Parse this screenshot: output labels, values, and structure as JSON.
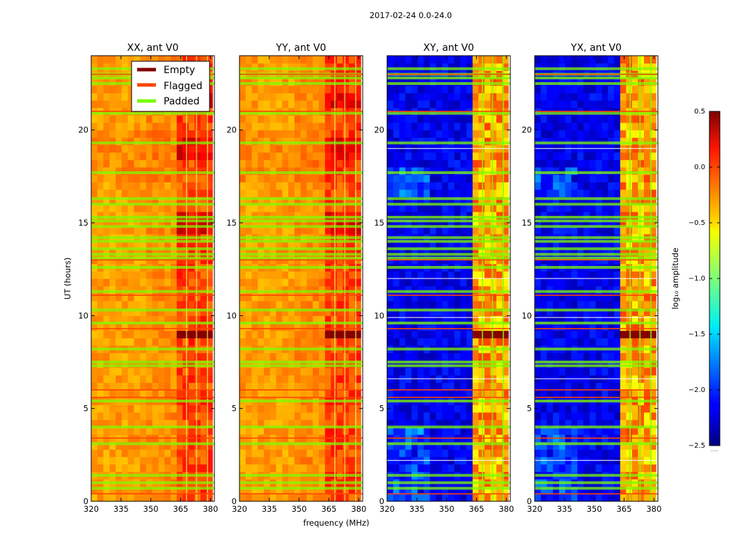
{
  "chart_data": {
    "type": "heatmap",
    "title": "2017-02-24 0.0-24.0",
    "xlabel": "frequency (MHz)",
    "ylabel": "UT (hours)",
    "xlim": [
      320,
      382
    ],
    "ylim": [
      0,
      24
    ],
    "xticks": [
      320,
      335,
      350,
      365,
      380
    ],
    "xtick_labels": [
      "320",
      "335",
      "350",
      "365",
      "380"
    ],
    "yticks": [
      0,
      5,
      10,
      15,
      20
    ],
    "ytick_labels": [
      "0",
      "5",
      "10",
      "15",
      "20"
    ],
    "panels": [
      {
        "title": "XX, ant V0",
        "mode": "cross_high"
      },
      {
        "title": "YY, ant V0",
        "mode": "cross_high"
      },
      {
        "title": "XY, ant V0",
        "mode": "cross_low"
      },
      {
        "title": "YX, ant V0",
        "mode": "cross_low"
      }
    ],
    "legend": {
      "location": "top-right of first panel",
      "entries": [
        {
          "label": "Empty",
          "color": "#800000"
        },
        {
          "label": "Flagged",
          "color": "#ff4500"
        },
        {
          "label": "Padded",
          "color": "#7cfc00"
        }
      ]
    },
    "colorbar": {
      "label": "log₁₀ amplitude",
      "range": [
        -2.5,
        0.5
      ],
      "colormap": "jet",
      "ticks": [
        0.5,
        0.0,
        -0.5,
        -1.0,
        -1.5,
        -2.0,
        -2.5
      ],
      "tick_labels": [
        "0.5",
        "0.0",
        "−0.5",
        "−1.0",
        "−1.5",
        "−2.0",
        "−2.5"
      ],
      "footer": "......"
    },
    "bright_band_mhz": [
      363,
      381
    ],
    "band_gaps_mhz": [
      368,
      373,
      378.5
    ],
    "padded_times_hours": [
      0.7,
      1.0,
      1.4,
      3.1,
      4.0,
      5.4,
      7.3,
      7.5,
      8.2,
      9.6,
      10.3,
      11.3,
      12.6,
      13.1,
      13.3,
      13.6,
      14.0,
      14.2,
      14.8,
      15.1,
      15.3,
      16.0,
      16.3,
      17.7,
      19.3,
      20.9,
      22.5,
      22.8,
      23.0,
      23.3
    ],
    "flagged_times_hours": [
      0.4,
      3.4,
      5.6,
      6.0,
      9.3,
      11.1,
      13.0,
      21.0,
      23.0
    ]
  }
}
